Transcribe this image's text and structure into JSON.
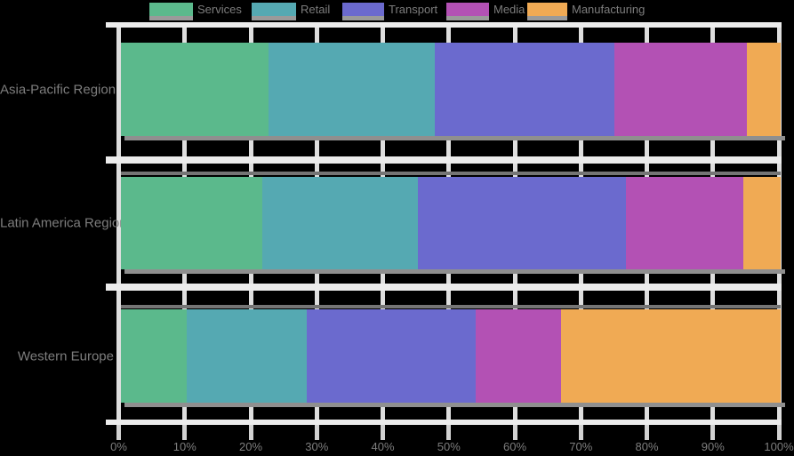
{
  "chart_data": {
    "type": "bar",
    "stacked": true,
    "orientation": "horizontal",
    "title": "",
    "xlabel": "",
    "ylabel": "",
    "xlim": [
      0,
      100
    ],
    "grid": true,
    "legend_position": "top",
    "x_ticks": [
      "0%",
      "10%",
      "20%",
      "30%",
      "40%",
      "50%",
      "60%",
      "70%",
      "80%",
      "90%",
      "100%"
    ],
    "categories": [
      "Asia-Pacific Region",
      "Latin America Region",
      "Western Europe"
    ],
    "series": [
      {
        "name": "Services",
        "color": "#5bb98c",
        "values": [
          22.4,
          21.4,
          10.0
        ]
      },
      {
        "name": "Retail",
        "color": "#55a9b2",
        "values": [
          25.2,
          23.6,
          18.1
        ]
      },
      {
        "name": "Transport",
        "color": "#6b6ace",
        "values": [
          27.1,
          31.5,
          25.6
        ]
      },
      {
        "name": "Media",
        "color": "#b351b4",
        "values": [
          20.1,
          17.8,
          12.9
        ]
      },
      {
        "name": "Manufacturing",
        "color": "#f0aa54",
        "values": [
          5.2,
          5.7,
          33.4
        ]
      }
    ]
  },
  "ui": {
    "background_color": "#000000",
    "text_color": "#7d7d7d",
    "frame_color": "#ececec",
    "gridline_color": "#dedede",
    "tick_color": "#d2d2d2",
    "shadow_color": "#8f8f8f"
  }
}
